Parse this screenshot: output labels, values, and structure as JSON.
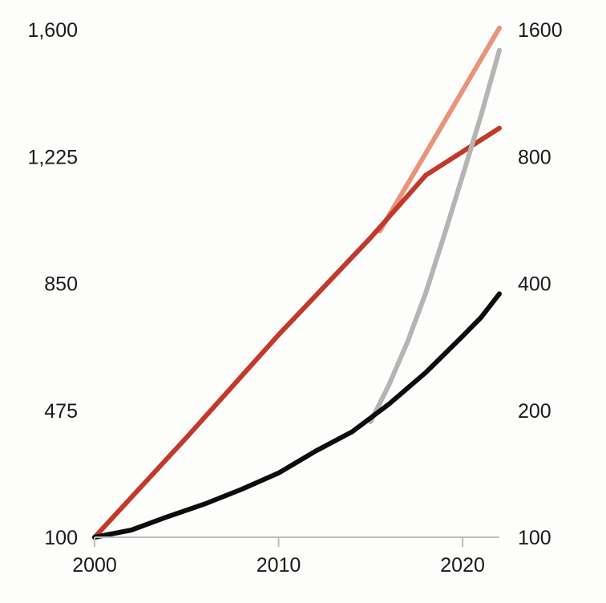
{
  "chart_data": {
    "type": "line",
    "title": "",
    "xlabel": "",
    "ylabel": "",
    "xlim": [
      2000,
      2022
    ],
    "x_ticks": [
      "2000",
      "2010",
      "2020"
    ],
    "y_left": {
      "scale": "linear",
      "lim": [
        100,
        1600
      ],
      "ticks": [
        "100",
        "475",
        "850",
        "1,225",
        "1,600"
      ]
    },
    "y_right": {
      "scale": "log",
      "lim": [
        100,
        1600
      ],
      "ticks": [
        "100",
        "200",
        "400",
        "800",
        "1600"
      ]
    },
    "grid": false,
    "legend": "none",
    "series": [
      {
        "color": "#c0392b",
        "axis": "left",
        "x": [
          2000,
          2005,
          2010,
          2015,
          2018,
          2022
        ],
        "y": [
          100,
          395,
          698,
          985,
          1170,
          1309
        ]
      },
      {
        "color": "#e8937a",
        "axis": "left",
        "x": [
          2015.5,
          2018,
          2020,
          2022
        ],
        "y": [
          1005,
          1235,
          1420,
          1605
        ]
      },
      {
        "color": "#0d0d0d",
        "axis": "right",
        "x": [
          2000,
          2002,
          2004,
          2006,
          2008,
          2010,
          2012,
          2014,
          2016,
          2018,
          2020,
          2021,
          2022
        ],
        "y": [
          100,
          104,
          112,
          120,
          130,
          142,
          160,
          178,
          207,
          246,
          300,
          332,
          378
        ]
      },
      {
        "color": "#b4b4b4",
        "axis": "right",
        "x": [
          2015,
          2016,
          2017,
          2018,
          2019,
          2020,
          2021,
          2022
        ],
        "y": [
          188,
          230,
          290,
          380,
          520,
          720,
          1000,
          1430
        ]
      }
    ]
  }
}
